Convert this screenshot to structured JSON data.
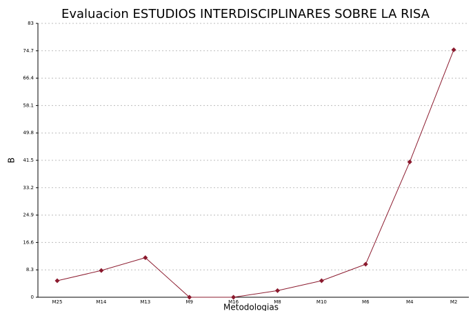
{
  "chart_data": {
    "type": "line",
    "title": "Evaluacion ESTUDIOS INTERDISCIPLINARES SOBRE LA RISA",
    "x_label": "Metodologias",
    "y_label": "B",
    "categories": [
      "M25",
      "M14",
      "M13",
      "M9",
      "M16",
      "M8",
      "M10",
      "M6",
      "M4",
      "M2"
    ],
    "series": [
      {
        "name": "B",
        "color": "#8b1a2e",
        "values": [
          5,
          8.1,
          12,
          0,
          0,
          2,
          5,
          10,
          41,
          75
        ]
      }
    ],
    "ylim": [
      0,
      83
    ],
    "yticks": [
      0,
      8.3,
      16.6,
      24.9,
      33.2,
      41.5,
      49.8,
      58.1,
      66.4,
      74.7,
      83
    ],
    "grid": true
  }
}
